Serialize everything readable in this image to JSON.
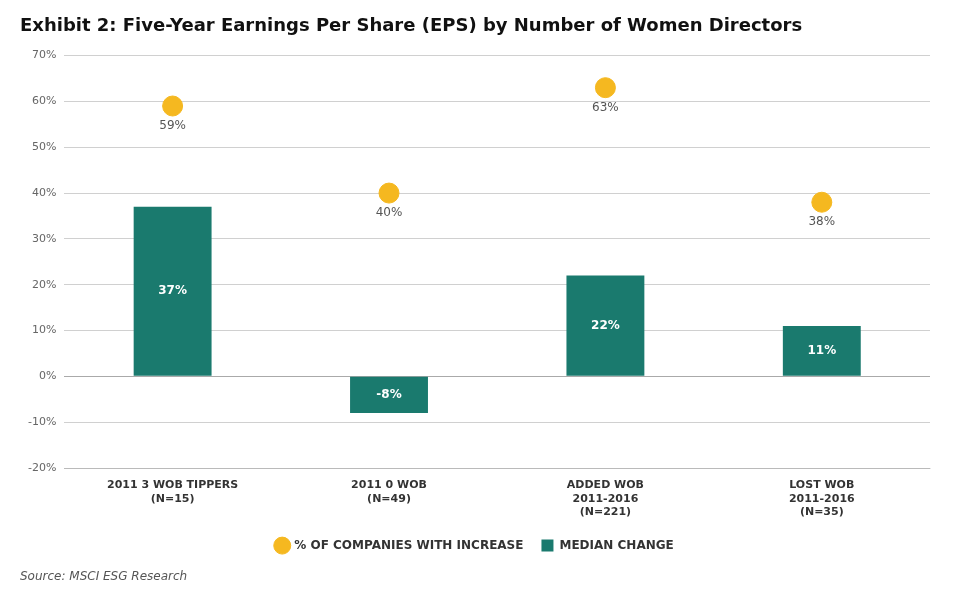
{
  "chart_data": {
    "type": "bar",
    "title": "Exhibit 2: Five-Year Earnings Per Share (EPS) by Number of Women Directors",
    "source": "Source: MSCI ESG Research",
    "categories": [
      "2011 3 WOB TIPPERS\n(N=15)",
      "2011 0 WOB\n(N=49)",
      "ADDED WOB\n2011-2016\n(N=221)",
      "LOST WOB\n2011-2016\n(N=35)"
    ],
    "series": [
      {
        "name": "MEDIAN CHANGE",
        "type": "bar",
        "color": "#1a7a6e",
        "values": [
          37,
          -8,
          22,
          11
        ],
        "value_labels": [
          "37%",
          "-8%",
          "22%",
          "11%"
        ]
      },
      {
        "name": "% OF COMPANIES WITH INCREASE",
        "type": "scatter",
        "color": "#f5b820",
        "marker": "circle",
        "values": [
          59,
          40,
          63,
          38
        ],
        "value_labels": [
          "59%",
          "40%",
          "63%",
          "38%"
        ]
      }
    ],
    "ylim": [
      -20,
      70
    ],
    "yticks": [
      {
        "value": -20,
        "label": "-20%"
      },
      {
        "value": -10,
        "label": "-10%"
      },
      {
        "value": 0,
        "label": "0%"
      },
      {
        "value": 10,
        "label": "10%"
      },
      {
        "value": 20,
        "label": "20%"
      },
      {
        "value": 30,
        "label": "30%"
      },
      {
        "value": 40,
        "label": "40%"
      },
      {
        "value": 50,
        "label": "50%"
      },
      {
        "value": 60,
        "label": "60%"
      },
      {
        "value": 70,
        "label": "70%"
      }
    ],
    "grid": true,
    "legend": "bottom",
    "data_labels": true
  }
}
